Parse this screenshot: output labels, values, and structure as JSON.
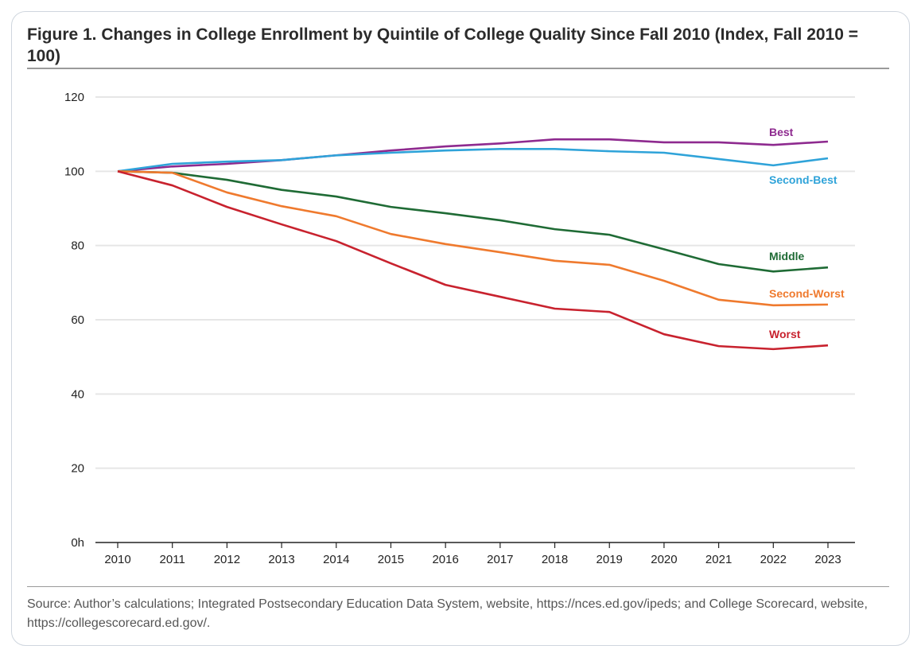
{
  "chart_data": {
    "type": "line",
    "title": "Figure 1. Changes in College Enrollment by Quintile of College Quality Since Fall 2010 (Index, Fall 2010 = 100)",
    "xlabel": "",
    "ylabel": "",
    "x": [
      2010,
      2011,
      2012,
      2013,
      2014,
      2015,
      2016,
      2017,
      2018,
      2019,
      2020,
      2021,
      2022,
      2023
    ],
    "ylim": [
      0,
      120
    ],
    "yticks": [
      0,
      20,
      40,
      60,
      80,
      100,
      120
    ],
    "ytick_labels": [
      "0h",
      "20",
      "40",
      "60",
      "80",
      "100",
      "120"
    ],
    "grid": true,
    "legend": "inline labels at right end of lines",
    "series": [
      {
        "name": "Best",
        "color": "#8e2a8f",
        "values": [
          100,
          101.3,
          102,
          103,
          104.3,
          105.6,
          106.7,
          107.5,
          108.6,
          108.6,
          107.8,
          107.8,
          107.1,
          108
        ]
      },
      {
        "name": "Second-Best",
        "color": "#2fa3d9",
        "values": [
          100,
          102,
          102.6,
          103,
          104.3,
          105,
          105.6,
          106,
          106,
          105.4,
          105,
          103.3,
          101.6,
          103.5
        ]
      },
      {
        "name": "Middle",
        "color": "#1f6b35",
        "values": [
          100,
          99.6,
          97.7,
          95,
          93.2,
          90.4,
          88.7,
          86.8,
          84.4,
          82.9,
          79,
          75,
          73,
          74.1
        ]
      },
      {
        "name": "Second-Worst",
        "color": "#ef7a2e",
        "values": [
          100,
          99.6,
          94.3,
          90.6,
          87.9,
          83.1,
          80.4,
          78.2,
          75.9,
          74.8,
          70.5,
          65.4,
          63.9,
          64.1
        ]
      },
      {
        "name": "Worst",
        "color": "#c8222e",
        "values": [
          100,
          96.2,
          90.4,
          85.7,
          81.2,
          75.2,
          69.4,
          66.2,
          63,
          62.1,
          56.1,
          52.9,
          52.1,
          53.1
        ]
      }
    ]
  },
  "source": "Source: Author’s calculations; Integrated Postsecondary Education Data System, website, https://nces.ed.gov/ipeds; and College Scorecard, website, https://collegescorecard.ed.gov/."
}
